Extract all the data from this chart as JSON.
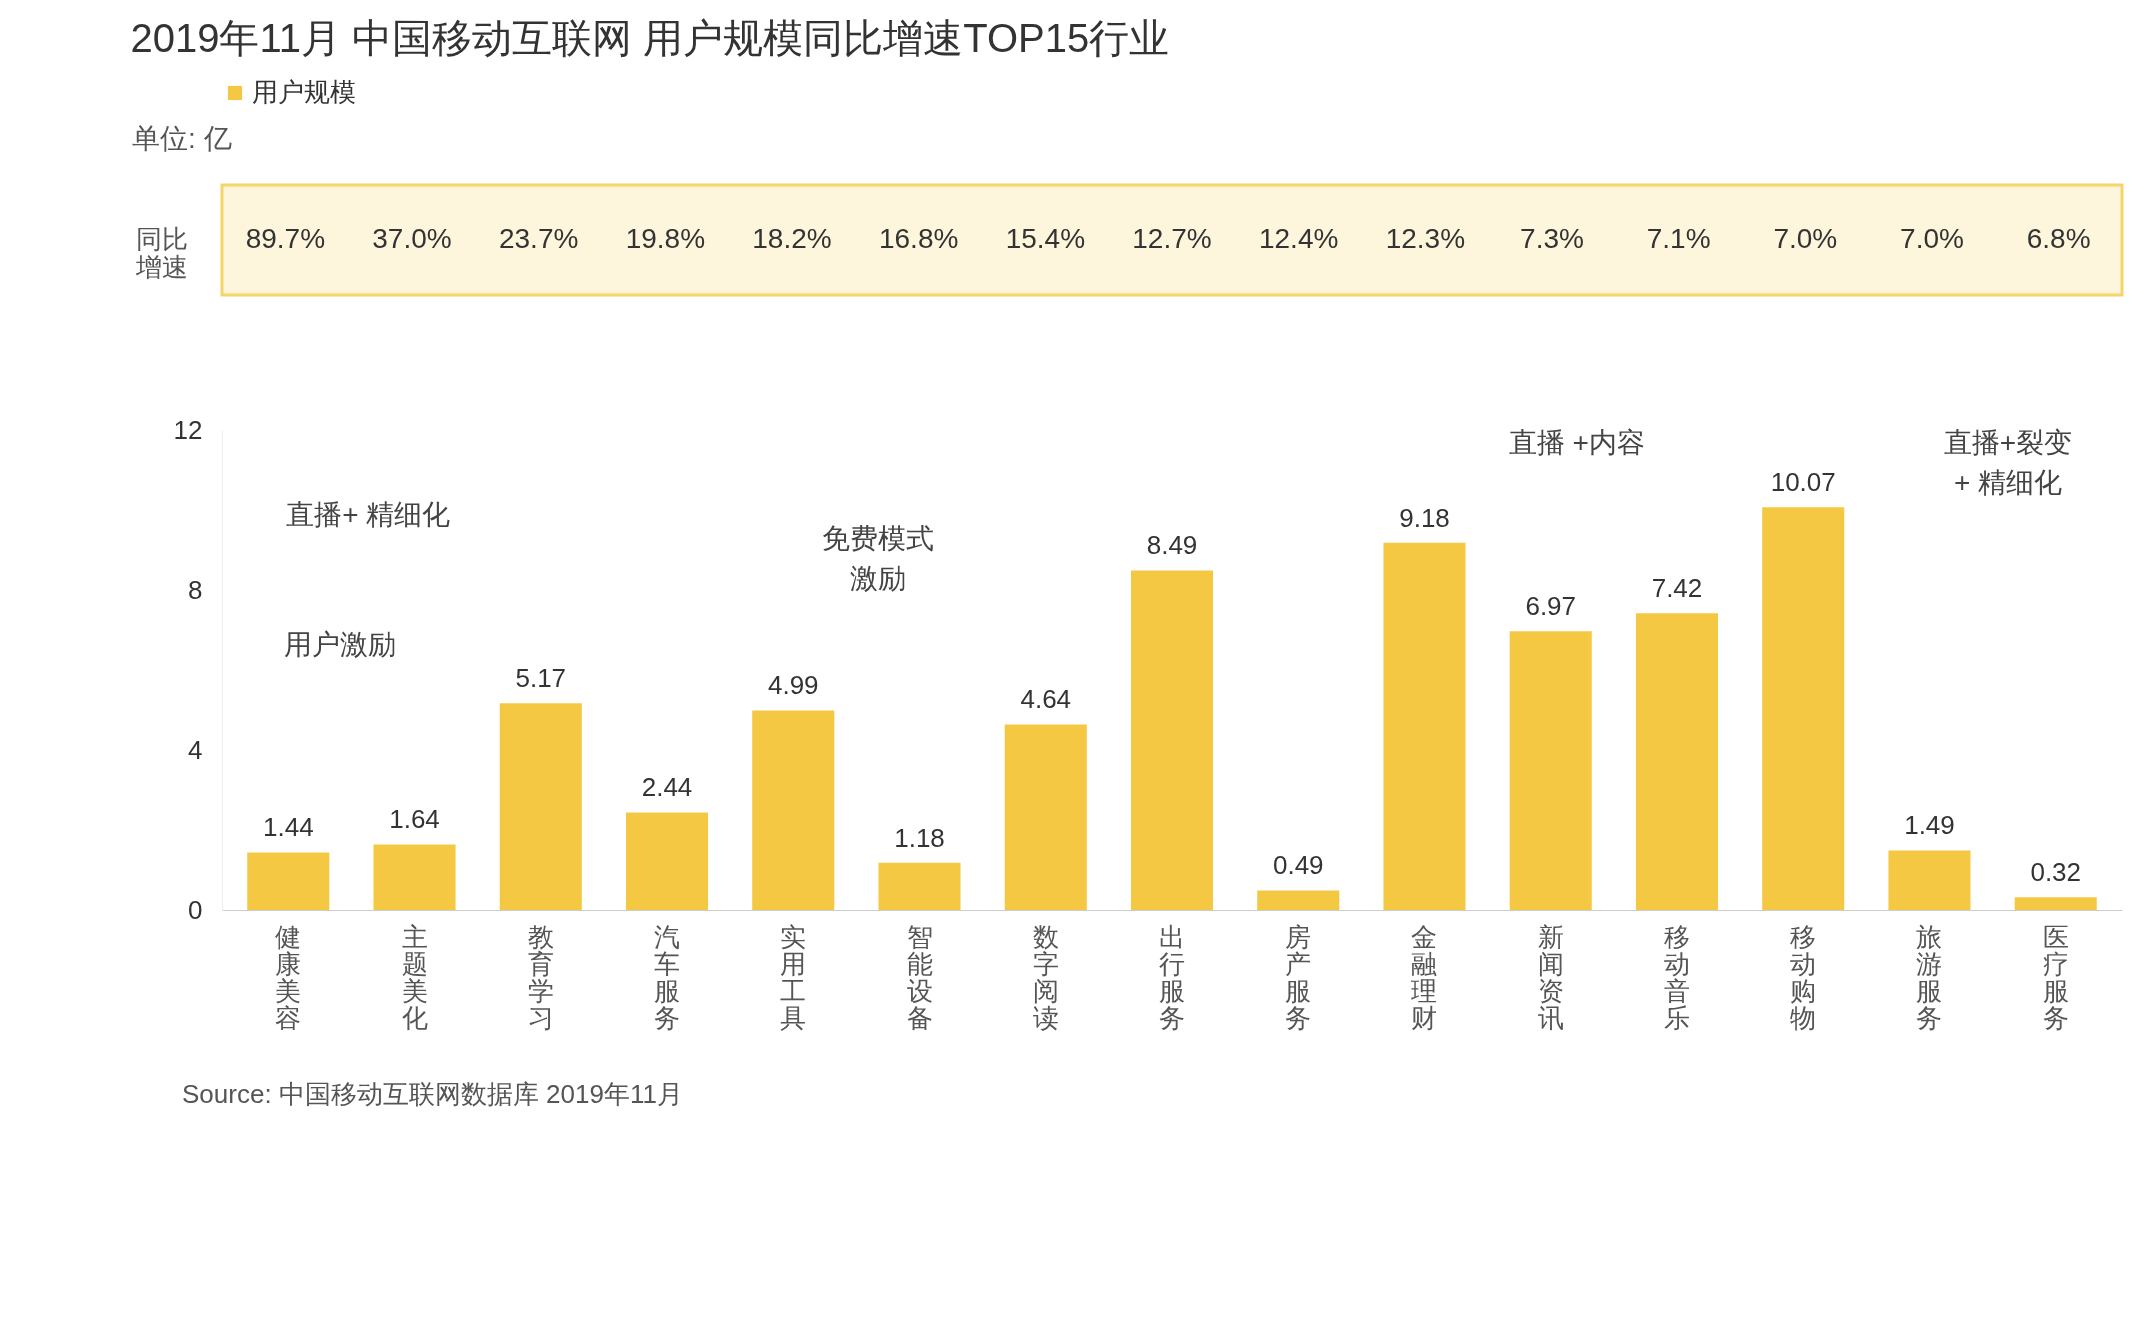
{
  "chart_data": {
    "type": "bar",
    "title": "2019年11月 中国移动互联网 用户规模同比增速TOP15行业",
    "categories": [
      "健康美容",
      "主题美化",
      "教育学习",
      "汽车服务",
      "实用工具",
      "智能设备",
      "数字阅读",
      "出行服务",
      "房产服务",
      "金融理财",
      "新闻资讯",
      "移动音乐",
      "移动购物",
      "旅游服务",
      "医疗服务"
    ],
    "series": [
      {
        "name": "用户规模",
        "color": "#f4c842",
        "values": [
          1.44,
          1.64,
          5.17,
          2.44,
          4.99,
          1.18,
          4.64,
          8.49,
          0.49,
          9.18,
          6.97,
          7.42,
          10.07,
          1.49,
          0.32
        ]
      }
    ],
    "ylim": [
      0,
      12
    ],
    "yticks": [
      0,
      4,
      8,
      12
    ],
    "grid": false,
    "legend": "top",
    "data_labels": true,
    "annotations": [
      "同比增速",
      "89.7%",
      "37.0%",
      "23.7%",
      "19.8%",
      "18.2%",
      "16.8%",
      "15.4%",
      "12.7%",
      "12.4%",
      "12.3%",
      "7.3%",
      "7.1%",
      "7.0%",
      "7.0%",
      "6.8%",
      "用户激励",
      "直播+ 精细化",
      "免费模式激励",
      "直播 +内容",
      "直播+裂变+ 精细化",
      "单位: 亿",
      "Source:  中国移动互联网数据库 2019年11月"
    ]
  }
}
